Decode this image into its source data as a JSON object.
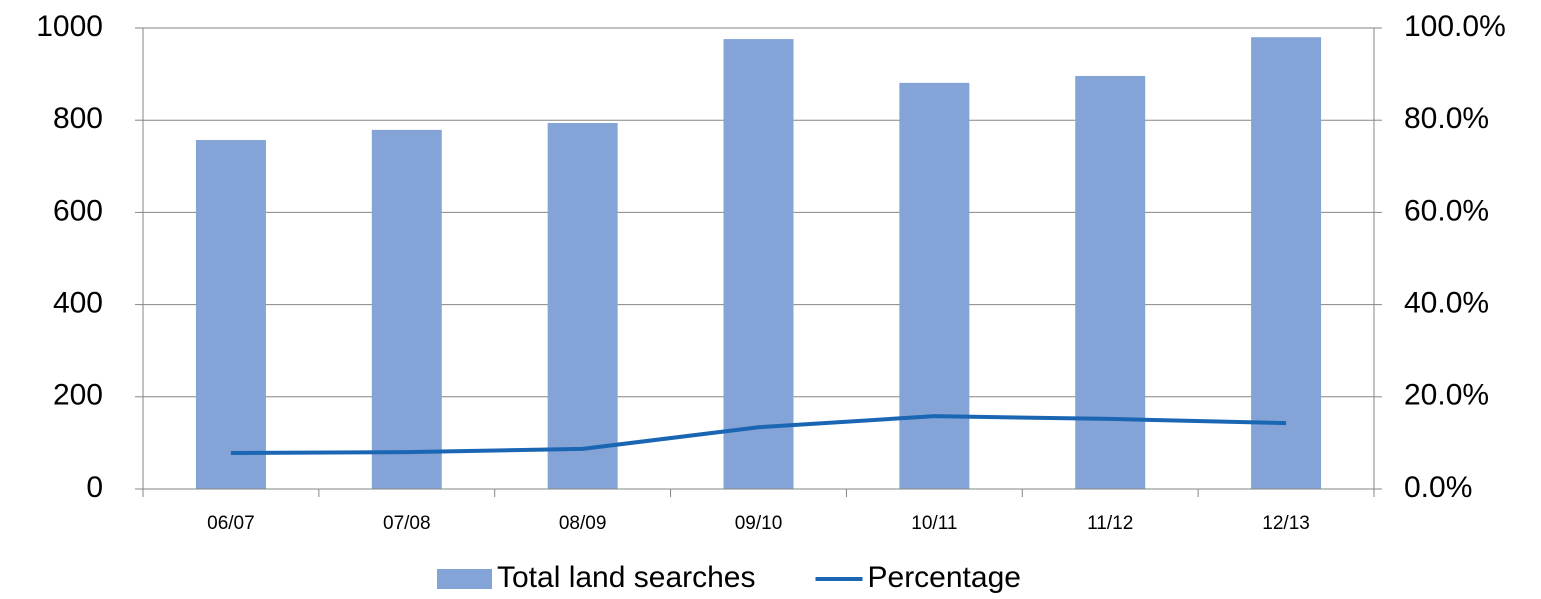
{
  "chart_data": {
    "type": "bar",
    "categories": [
      "06/07",
      "07/08",
      "08/09",
      "09/10",
      "10/11",
      "11/12",
      "12/13"
    ],
    "series": [
      {
        "name": "Total land searches",
        "type": "bar",
        "color": "#84a4d8",
        "values": [
          757,
          779,
          794,
          976,
          881,
          896,
          980
        ]
      },
      {
        "name": "Percentage",
        "type": "line",
        "axis": "y2",
        "color": "#1a66b3",
        "values": [
          7.8,
          8.0,
          8.7,
          13.4,
          15.8,
          15.2,
          14.3
        ]
      }
    ],
    "ylim": [
      0,
      1000
    ],
    "yticks": [
      0,
      200,
      400,
      600,
      800,
      1000
    ],
    "y2lim": [
      0,
      100
    ],
    "y2ticks": [
      {
        "value": 0,
        "label": "0.0%"
      },
      {
        "value": 20,
        "label": "20.0%"
      },
      {
        "value": 40,
        "label": "40.0%"
      },
      {
        "value": 60,
        "label": "60.0%"
      },
      {
        "value": 80,
        "label": "80.0%"
      },
      {
        "value": 100,
        "label": "100.0%"
      }
    ],
    "grid": true,
    "legend": "bottom"
  }
}
